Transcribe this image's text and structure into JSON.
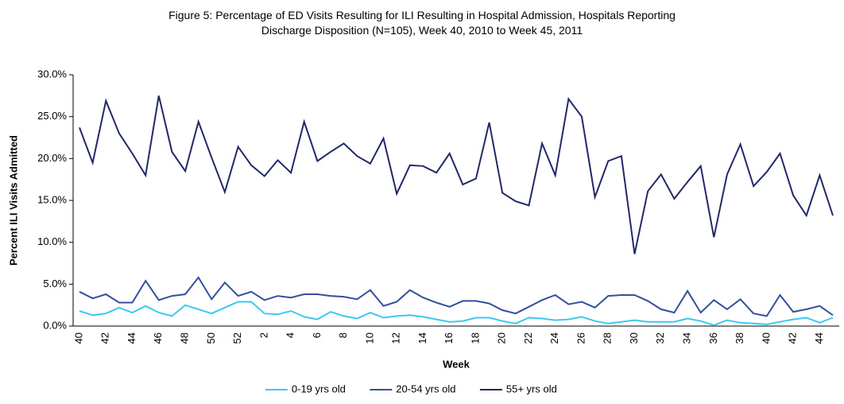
{
  "chart_data": {
    "type": "line",
    "title": "Figure 5: Percentage of ED Visits Resulting for ILI Resulting in Hospital Admission, Hospitals Reporting Discharge Disposition (N=105), Week 40, 2010 to Week 45, 2011",
    "x_label": "Week",
    "y_label": "Percent ILI Visits Admitted",
    "categories": [
      "40",
      null,
      "42",
      null,
      "44",
      null,
      "46",
      null,
      "48",
      null,
      "50",
      null,
      "52",
      null,
      "2",
      null,
      "4",
      null,
      "6",
      null,
      "8",
      null,
      "10",
      null,
      "12",
      null,
      "14",
      null,
      "16",
      null,
      "18",
      null,
      "20",
      null,
      "22",
      null,
      "24",
      null,
      "26",
      null,
      "28",
      null,
      "30",
      null,
      "32",
      null,
      "34",
      null,
      "36",
      null,
      "38",
      null,
      "40",
      null,
      "42",
      null,
      "44",
      null
    ],
    "series": [
      {
        "name": "0-19 yrs old",
        "color": "#3cc8f0",
        "values": [
          1.8,
          1.3,
          1.5,
          2.2,
          1.6,
          2.4,
          1.6,
          1.2,
          2.5,
          2.0,
          1.5,
          2.2,
          2.9,
          2.9,
          1.5,
          1.4,
          1.8,
          1.1,
          0.8,
          1.7,
          1.2,
          0.9,
          1.6,
          1.0,
          1.2,
          1.3,
          1.1,
          0.8,
          0.5,
          0.6,
          1.0,
          1.0,
          0.6,
          0.3,
          1.0,
          0.9,
          0.7,
          0.8,
          1.1,
          0.6,
          0.3,
          0.5,
          0.7,
          0.5,
          0.5,
          0.5,
          0.9,
          0.6,
          0.1,
          0.7,
          0.4,
          0.3,
          0.2,
          0.5,
          0.8,
          1.0,
          0.4,
          1.0
        ]
      },
      {
        "name": "20-54 yrs old",
        "color": "#34509c",
        "values": [
          4.1,
          3.3,
          3.8,
          2.8,
          2.8,
          5.4,
          3.1,
          3.6,
          3.8,
          5.8,
          3.2,
          5.2,
          3.6,
          4.1,
          3.1,
          3.6,
          3.4,
          3.8,
          3.8,
          3.6,
          3.5,
          3.2,
          4.3,
          2.4,
          2.9,
          4.3,
          3.4,
          2.8,
          2.3,
          3.0,
          3.0,
          2.7,
          1.9,
          1.5,
          2.3,
          3.1,
          3.7,
          2.6,
          2.9,
          2.2,
          3.6,
          3.7,
          3.7,
          3.0,
          2.0,
          1.6,
          4.2,
          1.6,
          3.1,
          2.0,
          3.2,
          1.5,
          1.2,
          3.7,
          1.7,
          2.0,
          2.4,
          1.3
        ]
      },
      {
        "name": "55+ yrs old",
        "color": "#222868",
        "values": [
          23.7,
          19.5,
          26.9,
          23.0,
          20.6,
          18.0,
          27.5,
          20.8,
          18.5,
          24.4,
          20.1,
          16.0,
          21.4,
          19.2,
          17.9,
          19.8,
          18.3,
          24.4,
          19.7,
          20.8,
          21.8,
          20.3,
          19.4,
          22.4,
          15.8,
          19.2,
          19.1,
          18.3,
          20.6,
          16.9,
          17.6,
          24.3,
          15.9,
          14.9,
          14.4,
          21.8,
          18.0,
          27.1,
          25.0,
          15.4,
          19.7,
          20.3,
          8.6,
          16.1,
          18.1,
          15.2,
          17.2,
          19.1,
          10.6,
          18.1,
          21.7,
          16.7,
          18.4,
          20.6,
          15.6,
          13.2,
          18.0,
          13.2
        ]
      }
    ],
    "ylim": [
      0,
      30
    ],
    "yticks": [
      {
        "value": 0,
        "label": "0.0%"
      },
      {
        "value": 5,
        "label": "5.0%"
      },
      {
        "value": 10,
        "label": "10.0%"
      },
      {
        "value": 15,
        "label": "15.0%"
      },
      {
        "value": 20,
        "label": "20.0%"
      },
      {
        "value": 25,
        "label": "25.0%"
      },
      {
        "value": 30,
        "label": "30.0%"
      }
    ],
    "grid": false,
    "legend": "bottom"
  }
}
